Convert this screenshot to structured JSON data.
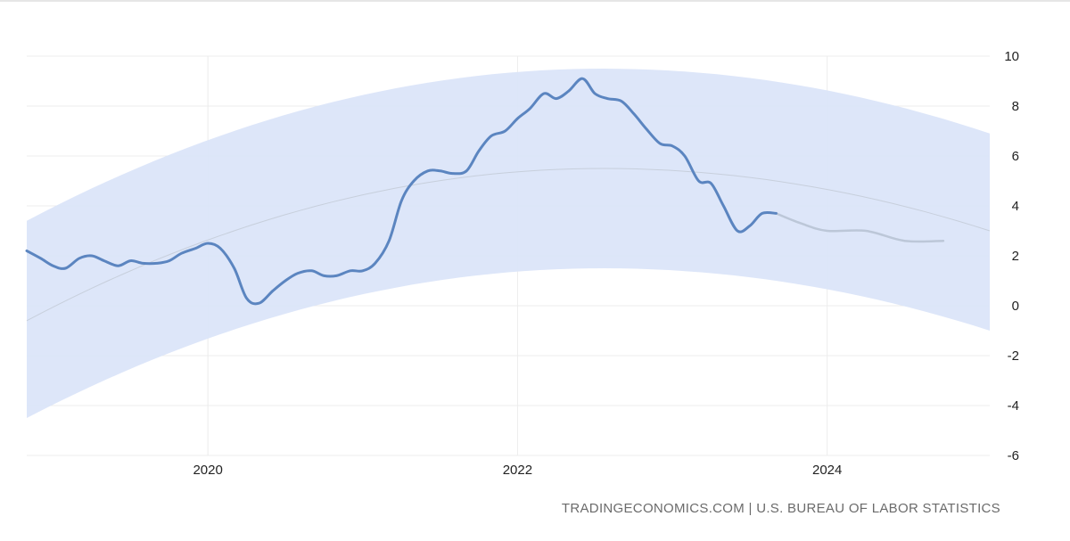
{
  "source_credit": "TRADINGECONOMICS.COM | U.S. BUREAU OF LABOR STATISTICS",
  "chart_data": {
    "type": "line",
    "title": "",
    "xlabel": "",
    "ylabel": "",
    "xlim": [
      2018.83,
      2025.05
    ],
    "ylim": [
      -6,
      10
    ],
    "yticks": [
      10,
      8,
      6,
      4,
      2,
      0,
      -2,
      -4,
      -6
    ],
    "xticks": [
      2020,
      2022,
      2024
    ],
    "y_axis_position": "right",
    "grid": true,
    "legend": "none",
    "colors": {
      "actual": "#5b85c0",
      "forecast": "#bcc7d8",
      "band": "#dbe5f9",
      "trend": "#c7cfdc",
      "grid": "#ececec"
    },
    "series": [
      {
        "role": "actual",
        "x": [
          2018.83,
          2018.92,
          2019.0,
          2019.08,
          2019.17,
          2019.25,
          2019.33,
          2019.42,
          2019.5,
          2019.58,
          2019.67,
          2019.75,
          2019.83,
          2019.92,
          2020.0,
          2020.08,
          2020.17,
          2020.25,
          2020.33,
          2020.42,
          2020.5,
          2020.58,
          2020.67,
          2020.75,
          2020.83,
          2020.92,
          2021.0,
          2021.08,
          2021.17,
          2021.25,
          2021.33,
          2021.42,
          2021.5,
          2021.58,
          2021.67,
          2021.75,
          2021.83,
          2021.92,
          2022.0,
          2022.08,
          2022.17,
          2022.25,
          2022.33,
          2022.42,
          2022.5,
          2022.58,
          2022.67,
          2022.75,
          2022.83,
          2022.92,
          2023.0,
          2023.08,
          2023.17,
          2023.25,
          2023.33,
          2023.42,
          2023.5,
          2023.58,
          2023.67
        ],
        "y": [
          2.2,
          1.9,
          1.6,
          1.5,
          1.9,
          2.0,
          1.8,
          1.6,
          1.8,
          1.7,
          1.7,
          1.8,
          2.1,
          2.3,
          2.5,
          2.3,
          1.5,
          0.3,
          0.1,
          0.6,
          1.0,
          1.3,
          1.4,
          1.2,
          1.2,
          1.4,
          1.4,
          1.7,
          2.6,
          4.2,
          5.0,
          5.4,
          5.4,
          5.3,
          5.4,
          6.2,
          6.8,
          7.0,
          7.5,
          7.9,
          8.5,
          8.3,
          8.6,
          9.1,
          8.5,
          8.3,
          8.2,
          7.7,
          7.1,
          6.5,
          6.4,
          6.0,
          5.0,
          4.9,
          4.0,
          3.0,
          3.2,
          3.7,
          3.7
        ]
      },
      {
        "role": "forecast",
        "x": [
          2023.67,
          2023.83,
          2024.0,
          2024.25,
          2024.5,
          2024.75
        ],
        "y": [
          3.7,
          3.3,
          3.0,
          3.0,
          2.6,
          2.6
        ]
      }
    ]
  }
}
